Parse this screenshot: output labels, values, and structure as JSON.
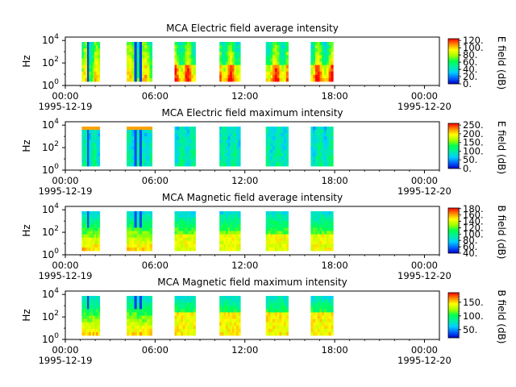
{
  "chart_data": [
    {
      "type": "heatmap",
      "title": "MCA  Electric field average intensity",
      "ylabel": "Hz",
      "y_scale": "log",
      "ylim": [
        1,
        20000
      ],
      "x_range": [
        "1995-12-19T00:00",
        "1995-12-20T01:00"
      ],
      "x_tick_labels": [
        "00:00",
        "06:00",
        "12:00",
        "18:00",
        "00:00"
      ],
      "x_date_labels": [
        "1995-12-19",
        "1995-12-20"
      ],
      "y_tick_labels": [
        "10",
        "10",
        "10"
      ],
      "y_tick_exponents": [
        "0",
        "2",
        "4"
      ],
      "colorbar": {
        "label": "E field (dB)",
        "range": [
          0,
          125
        ],
        "tick_labels": [
          "0.",
          "20.",
          "40.",
          "60.",
          "80.",
          "100.",
          "120."
        ]
      },
      "segments_hours": [
        [
          1.1,
          2.3
        ],
        [
          4.1,
          5.8
        ],
        [
          7.3,
          8.7
        ],
        [
          10.3,
          11.7
        ],
        [
          13.4,
          14.9
        ],
        [
          16.4,
          17.9
        ]
      ],
      "colormap": "rainbow-green"
    },
    {
      "type": "heatmap",
      "title": "MCA  Electric field maximum intensity",
      "ylabel": "Hz",
      "y_scale": "log",
      "ylim": [
        1,
        20000
      ],
      "x_range": [
        "1995-12-19T00:00",
        "1995-12-20T01:00"
      ],
      "x_tick_labels": [
        "00:00",
        "06:00",
        "12:00",
        "18:00",
        "00:00"
      ],
      "x_date_labels": [
        "1995-12-19",
        "1995-12-20"
      ],
      "y_tick_labels": [
        "10",
        "10",
        "10"
      ],
      "y_tick_exponents": [
        "0",
        "2",
        "4"
      ],
      "colorbar": {
        "label": "E field (dB)",
        "range": [
          0,
          260
        ],
        "tick_labels": [
          "0.",
          "50.",
          "100.",
          "150.",
          "200.",
          "250."
        ]
      },
      "segments_hours": [
        [
          1.1,
          2.3
        ],
        [
          4.1,
          5.8
        ],
        [
          7.3,
          8.7
        ],
        [
          10.3,
          11.7
        ],
        [
          13.4,
          14.9
        ],
        [
          16.4,
          17.9
        ]
      ],
      "colormap": "rainbow-green"
    },
    {
      "type": "heatmap",
      "title": "MCA  Magnetic field average intensity",
      "ylabel": "Hz",
      "y_scale": "log",
      "ylim": [
        1,
        20000
      ],
      "x_range": [
        "1995-12-19T00:00",
        "1995-12-20T01:00"
      ],
      "x_tick_labels": [
        "00:00",
        "06:00",
        "12:00",
        "18:00",
        "00:00"
      ],
      "x_date_labels": [
        "1995-12-19",
        "1995-12-20"
      ],
      "y_tick_labels": [
        "10",
        "10",
        "10"
      ],
      "y_tick_exponents": [
        "0",
        "2",
        "4"
      ],
      "colorbar": {
        "label": "B field (dB)",
        "range": [
          40,
          182
        ],
        "tick_labels": [
          "40.",
          "60.",
          "80.",
          "100.",
          "120.",
          "140.",
          "160.",
          "180."
        ]
      },
      "segments_hours": [
        [
          1.1,
          2.3
        ],
        [
          4.1,
          5.8
        ],
        [
          7.3,
          8.7
        ],
        [
          10.3,
          11.7
        ],
        [
          13.4,
          14.9
        ],
        [
          16.4,
          17.9
        ]
      ],
      "colormap": "rainbow-green"
    },
    {
      "type": "heatmap",
      "title": "MCA  Magnetic field maximum intensity",
      "ylabel": "Hz",
      "y_scale": "log",
      "ylim": [
        1,
        20000
      ],
      "x_range": [
        "1995-12-19T00:00",
        "1995-12-20T01:00"
      ],
      "x_tick_labels": [
        "00:00",
        "06:00",
        "12:00",
        "18:00",
        "00:00"
      ],
      "x_date_labels": [
        "1995-12-19",
        "1995-12-20"
      ],
      "y_tick_labels": [
        "10",
        "10",
        "10"
      ],
      "y_tick_exponents": [
        "0",
        "2",
        "4"
      ],
      "colorbar": {
        "label": "B field (dB)",
        "range": [
          20,
          185
        ],
        "tick_labels": [
          "50.",
          "100.",
          "150."
        ]
      },
      "segments_hours": [
        [
          1.1,
          2.3
        ],
        [
          4.1,
          5.8
        ],
        [
          7.3,
          8.7
        ],
        [
          10.3,
          11.7
        ],
        [
          13.4,
          14.9
        ],
        [
          16.4,
          17.9
        ]
      ],
      "colormap": "rainbow-green"
    }
  ]
}
